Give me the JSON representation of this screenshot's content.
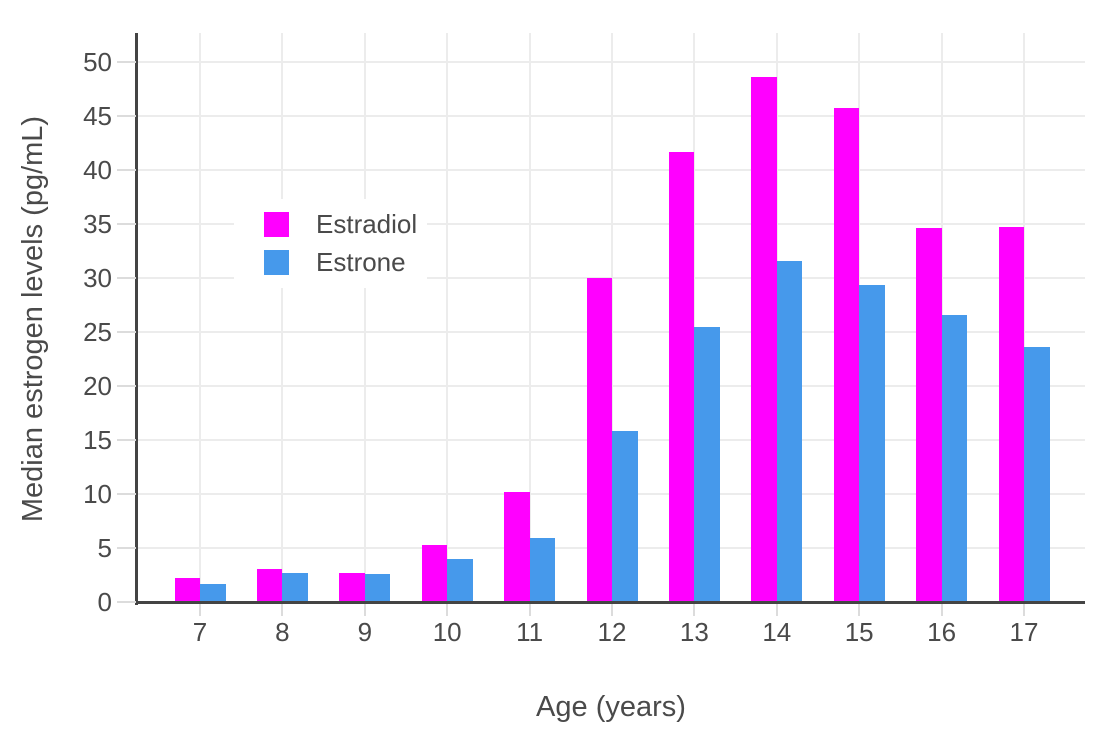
{
  "chart_data": {
    "type": "bar",
    "title": "",
    "xlabel": "Age (years)",
    "ylabel": "Median estrogen levels (pg/mL)",
    "categories": [
      "7",
      "8",
      "9",
      "10",
      "11",
      "12",
      "13",
      "14",
      "15",
      "16",
      "17"
    ],
    "series": [
      {
        "name": "Estradiol",
        "color": "#ff00ff",
        "values": [
          2.2,
          3.1,
          2.7,
          5.3,
          10.2,
          30.0,
          41.7,
          48.6,
          45.8,
          34.6,
          34.7
        ]
      },
      {
        "name": "Estrone",
        "color": "#4699eb",
        "values": [
          1.7,
          2.7,
          2.6,
          4.0,
          5.9,
          15.8,
          25.5,
          31.6,
          29.4,
          26.6,
          23.6
        ]
      }
    ],
    "yticks": [
      0,
      5,
      10,
      15,
      20,
      25,
      30,
      35,
      40,
      45,
      50
    ],
    "ylim": [
      0,
      52.7
    ],
    "grid": true,
    "legend_position": "inside-top-left",
    "colors": {
      "axis_line": "#444444",
      "gridline": "#ececec",
      "tick_mark": "#dcdcdc",
      "text": "#4a4a4a",
      "background": "#ffffff"
    }
  }
}
